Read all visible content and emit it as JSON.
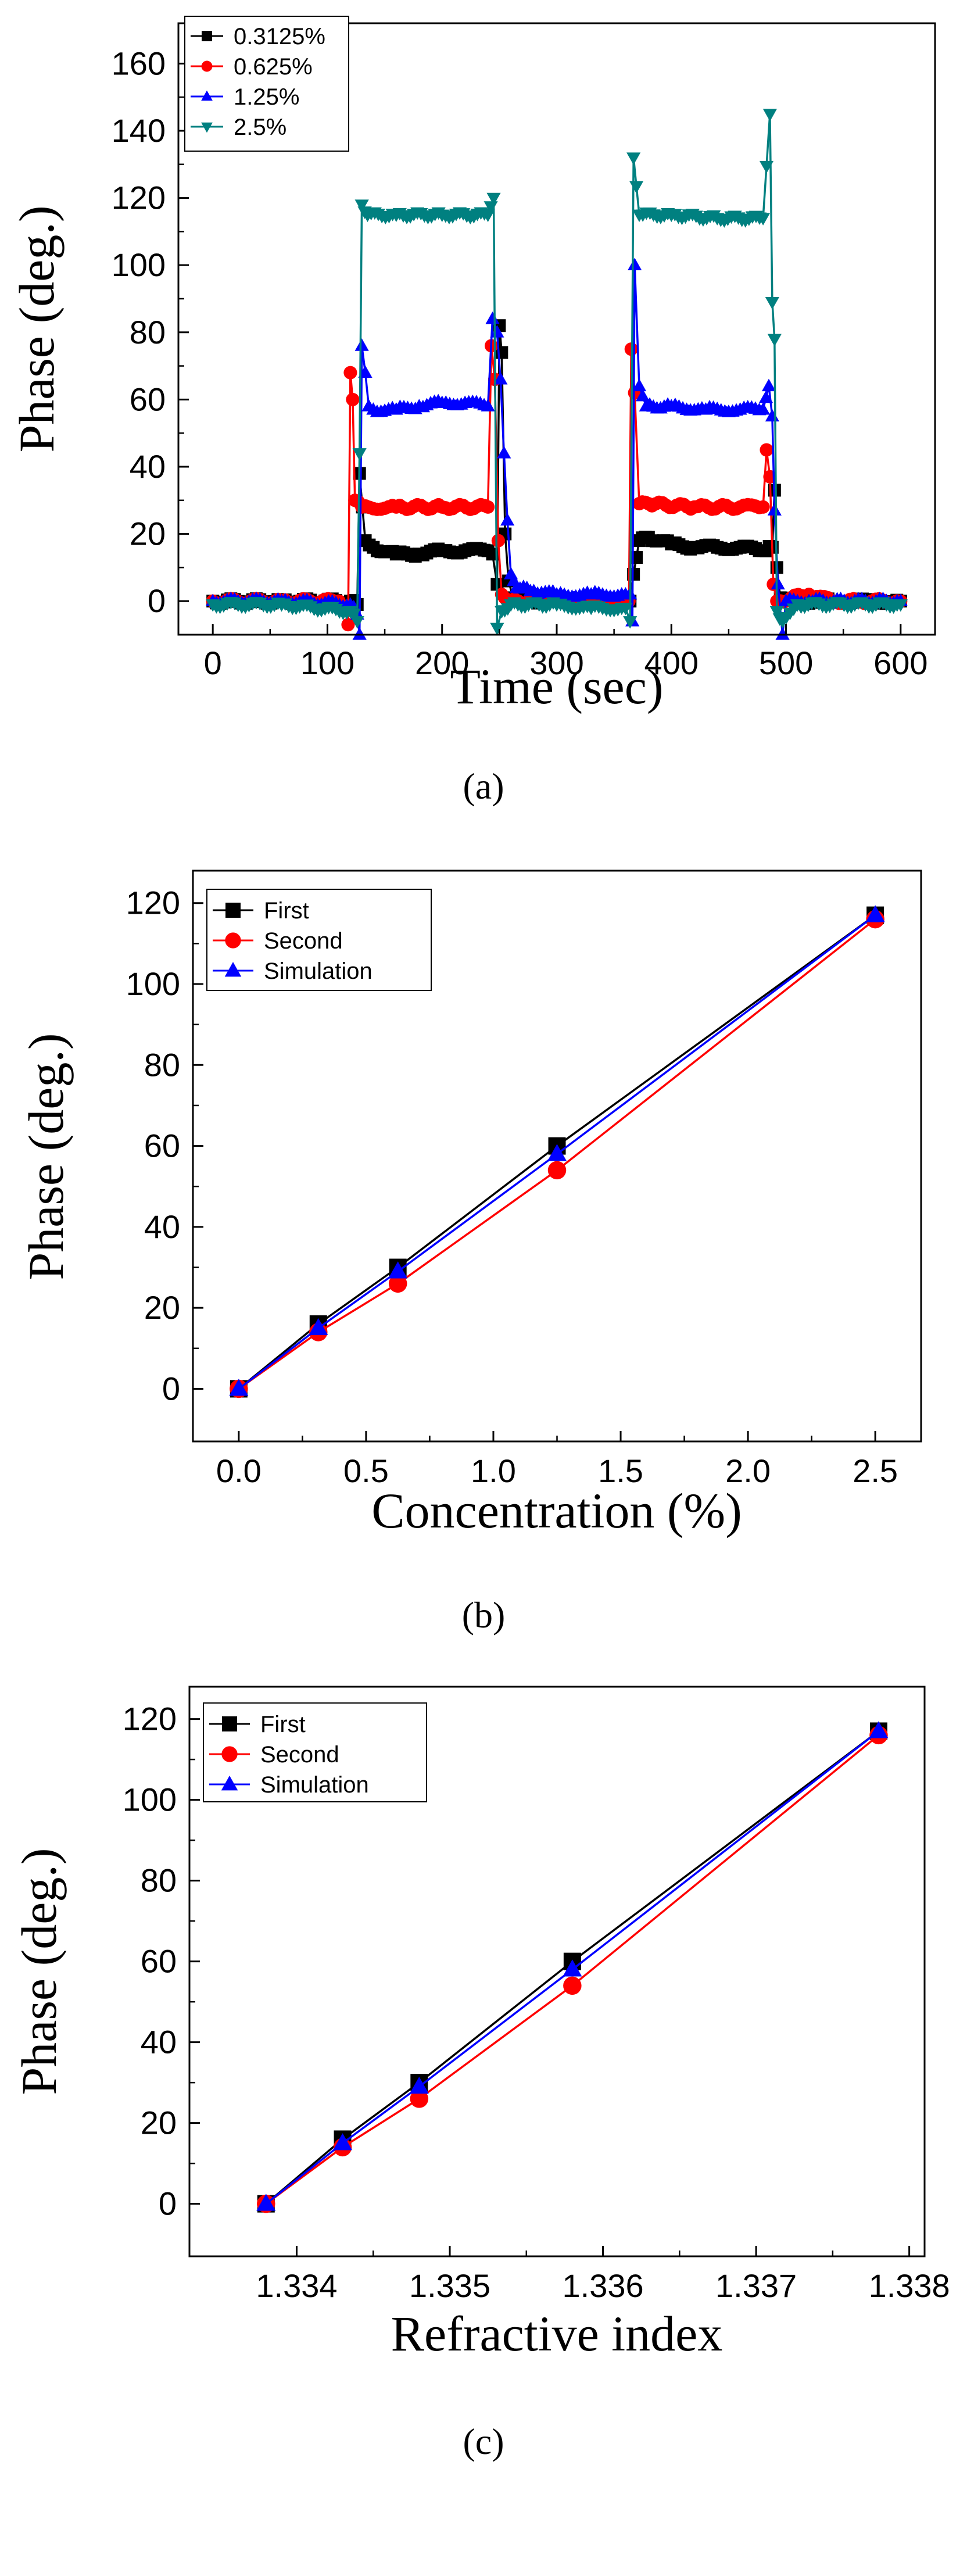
{
  "colors": {
    "axis": "#000000",
    "black": "#000000",
    "red": "#ff0000",
    "blue": "#0000ff",
    "teal": "#008080"
  },
  "panel_labels": [
    "(a)",
    "(b)",
    "(c)"
  ],
  "chart_data": [
    {
      "type": "line",
      "title": "",
      "xlabel": "Time (sec)",
      "ylabel": "Phase (deg.)",
      "xlim": [
        -30,
        630
      ],
      "ylim": [
        -10,
        172
      ],
      "xticks": [
        0,
        100,
        200,
        300,
        400,
        500,
        600
      ],
      "yticks": [
        0,
        20,
        40,
        60,
        80,
        100,
        120,
        140,
        160
      ],
      "legend_position": "top-left",
      "series": [
        {
          "name": "0.3125%",
          "color": "#000000",
          "marker": "square",
          "points": [
            [
              0,
              0
            ],
            [
              60,
              0
            ],
            [
              120,
              0
            ],
            [
              126,
              -1
            ],
            [
              128,
              38
            ],
            [
              133,
              18
            ],
            [
              140,
              16
            ],
            [
              160,
              14
            ],
            [
              180,
              14
            ],
            [
              200,
              15
            ],
            [
              220,
              15
            ],
            [
              240,
              15
            ],
            [
              244,
              14
            ],
            [
              248,
              5
            ],
            [
              250,
              82
            ],
            [
              252,
              74
            ],
            [
              255,
              20
            ],
            [
              258,
              6
            ],
            [
              262,
              1
            ],
            [
              280,
              0
            ],
            [
              300,
              0
            ],
            [
              330,
              0
            ],
            [
              360,
              0
            ],
            [
              364,
              0
            ],
            [
              367,
              8
            ],
            [
              372,
              18
            ],
            [
              380,
              19
            ],
            [
              400,
              17
            ],
            [
              420,
              16
            ],
            [
              440,
              16
            ],
            [
              460,
              16
            ],
            [
              480,
              15
            ],
            [
              488,
              16
            ],
            [
              490,
              33
            ],
            [
              492,
              10
            ],
            [
              495,
              1
            ],
            [
              510,
              0
            ],
            [
              540,
              0
            ],
            [
              570,
              0
            ],
            [
              600,
              0
            ]
          ]
        },
        {
          "name": "0.625%",
          "color": "#ff0000",
          "marker": "circle",
          "points": [
            [
              0,
              0
            ],
            [
              60,
              0
            ],
            [
              110,
              0
            ],
            [
              116,
              -2
            ],
            [
              118,
              -7
            ],
            [
              120,
              68
            ],
            [
              122,
              60
            ],
            [
              124,
              30
            ],
            [
              130,
              28
            ],
            [
              160,
              28
            ],
            [
              200,
              28
            ],
            [
              240,
              28
            ],
            [
              243,
              76
            ],
            [
              246,
              66
            ],
            [
              249,
              18
            ],
            [
              252,
              2
            ],
            [
              260,
              0
            ],
            [
              300,
              0
            ],
            [
              360,
              0
            ],
            [
              363,
              0
            ],
            [
              365,
              75
            ],
            [
              368,
              62
            ],
            [
              372,
              29
            ],
            [
              380,
              29
            ],
            [
              420,
              28
            ],
            [
              460,
              28
            ],
            [
              480,
              28
            ],
            [
              483,
              45
            ],
            [
              486,
              37
            ],
            [
              489,
              5
            ],
            [
              492,
              0
            ],
            [
              520,
              2
            ],
            [
              540,
              0
            ],
            [
              600,
              0
            ]
          ]
        },
        {
          "name": "1.25%",
          "color": "#0000ff",
          "marker": "triangle-up",
          "points": [
            [
              0,
              0
            ],
            [
              60,
              0
            ],
            [
              120,
              -1
            ],
            [
              126,
              -4
            ],
            [
              128,
              -10
            ],
            [
              130,
              76
            ],
            [
              133,
              68
            ],
            [
              136,
              58
            ],
            [
              140,
              57
            ],
            [
              160,
              57
            ],
            [
              180,
              58
            ],
            [
              200,
              59
            ],
            [
              220,
              59
            ],
            [
              240,
              58
            ],
            [
              244,
              84
            ],
            [
              248,
              80
            ],
            [
              251,
              66
            ],
            [
              254,
              44
            ],
            [
              257,
              24
            ],
            [
              260,
              8
            ],
            [
              265,
              4
            ],
            [
              280,
              3
            ],
            [
              300,
              2
            ],
            [
              330,
              2
            ],
            [
              360,
              2
            ],
            [
              364,
              2
            ],
            [
              366,
              -6
            ],
            [
              368,
              100
            ],
            [
              372,
              64
            ],
            [
              378,
              58
            ],
            [
              400,
              58
            ],
            [
              430,
              57
            ],
            [
              460,
              57
            ],
            [
              480,
              57
            ],
            [
              485,
              64
            ],
            [
              488,
              55
            ],
            [
              490,
              27
            ],
            [
              493,
              5
            ],
            [
              497,
              -10
            ],
            [
              500,
              0
            ],
            [
              520,
              0
            ],
            [
              560,
              0
            ],
            [
              600,
              0
            ]
          ]
        },
        {
          "name": "2.5%",
          "color": "#008080",
          "marker": "triangle-down",
          "points": [
            [
              0,
              -1
            ],
            [
              60,
              -1
            ],
            [
              120,
              -3
            ],
            [
              126,
              -6
            ],
            [
              128,
              44
            ],
            [
              130,
              118
            ],
            [
              135,
              115
            ],
            [
              160,
              115
            ],
            [
              200,
              115
            ],
            [
              240,
              115
            ],
            [
              245,
              120
            ],
            [
              248,
              -8
            ],
            [
              252,
              -3
            ],
            [
              260,
              -1
            ],
            [
              300,
              -1
            ],
            [
              330,
              -2
            ],
            [
              360,
              -2
            ],
            [
              364,
              -6
            ],
            [
              367,
              132
            ],
            [
              372,
              115
            ],
            [
              400,
              115
            ],
            [
              440,
              114
            ],
            [
              480,
              114
            ],
            [
              486,
              145
            ],
            [
              488,
              89
            ],
            [
              490,
              78
            ],
            [
              492,
              -3
            ],
            [
              497,
              -6
            ],
            [
              510,
              -1
            ],
            [
              560,
              -1
            ],
            [
              600,
              -1
            ]
          ]
        }
      ]
    },
    {
      "type": "line",
      "title": "",
      "xlabel": "Concentration (%)",
      "ylabel": "Phase (deg.)",
      "xlim": [
        -0.18,
        2.68
      ],
      "ylim": [
        -13,
        128
      ],
      "xticks": [
        0.0,
        0.5,
        1.0,
        1.5,
        2.0,
        2.5
      ],
      "yticks": [
        0,
        20,
        40,
        60,
        80,
        100,
        120
      ],
      "legend_position": "top-left",
      "series": [
        {
          "name": "First",
          "color": "#000000",
          "marker": "square",
          "x": [
            0.0,
            0.3125,
            0.625,
            1.25,
            2.5
          ],
          "values": [
            0,
            16,
            30,
            60,
            117
          ]
        },
        {
          "name": "Second",
          "color": "#ff0000",
          "marker": "circle",
          "x": [
            0.0,
            0.3125,
            0.625,
            1.25,
            2.5
          ],
          "values": [
            0,
            14,
            26,
            54,
            116
          ]
        },
        {
          "name": "Simulation",
          "color": "#0000ff",
          "marker": "triangle-up",
          "x": [
            0.0,
            0.3125,
            0.625,
            1.25,
            2.5
          ],
          "values": [
            0,
            15,
            29,
            58,
            117
          ]
        }
      ]
    },
    {
      "type": "line",
      "title": "",
      "xlabel": "Refractive index",
      "ylabel": "Phase (deg.)",
      "xlim": [
        1.3333,
        1.3381
      ],
      "ylim": [
        -13,
        128
      ],
      "xticks": [
        1.334,
        1.335,
        1.336,
        1.337,
        1.338
      ],
      "yticks": [
        0,
        20,
        40,
        60,
        80,
        100,
        120
      ],
      "legend_position": "top-left",
      "series": [
        {
          "name": "First",
          "color": "#000000",
          "marker": "square",
          "x": [
            1.3338,
            1.3343,
            1.3348,
            1.3358,
            1.3378
          ],
          "values": [
            0,
            16,
            30,
            60,
            117
          ]
        },
        {
          "name": "Second",
          "color": "#ff0000",
          "marker": "circle",
          "x": [
            1.3338,
            1.3343,
            1.3348,
            1.3358,
            1.3378
          ],
          "values": [
            0,
            14,
            26,
            54,
            116
          ]
        },
        {
          "name": "Simulation",
          "color": "#0000ff",
          "marker": "triangle-up",
          "x": [
            1.3338,
            1.3343,
            1.3348,
            1.3358,
            1.3378
          ],
          "values": [
            0,
            15,
            29,
            58,
            117
          ]
        }
      ]
    }
  ]
}
